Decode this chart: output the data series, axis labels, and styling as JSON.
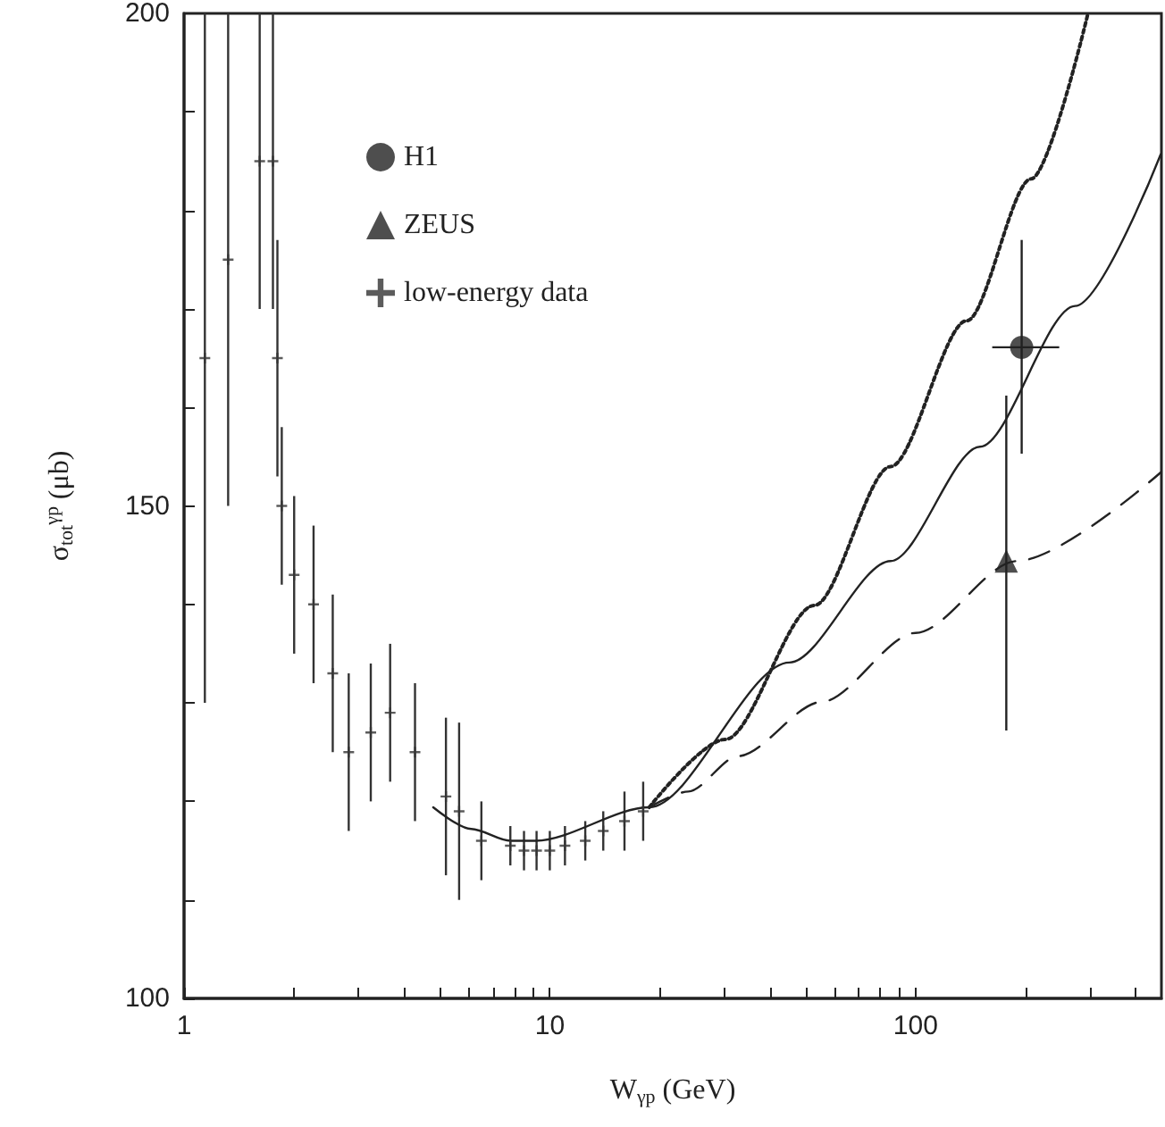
{
  "chart_data": {
    "type": "scatter",
    "xlabel": "W$_{γp}$ (GeV)",
    "ylabel": "σ$_{tot}$$^{γp}$ (μb)",
    "log": "x",
    "xlim": [
      1,
      470
    ],
    "ylim": [
      100,
      200
    ],
    "xticks": [
      1,
      {
        "value": 2,
        "label": null
      },
      {
        "value": 3,
        "label": null
      },
      {
        "value": 4,
        "label": null
      },
      {
        "value": 5,
        "label": null
      },
      {
        "value": 6,
        "label": null
      },
      {
        "value": 7,
        "label": null
      },
      {
        "value": 8,
        "label": null
      },
      {
        "value": 9,
        "label": null
      },
      10,
      {
        "value": 20,
        "label": null
      },
      {
        "value": 30,
        "label": null
      },
      {
        "value": 40,
        "label": null
      },
      {
        "value": 50,
        "label": null
      },
      {
        "value": 60,
        "label": null
      },
      {
        "value": 70,
        "label": null
      },
      {
        "value": 80,
        "label": null
      },
      {
        "value": 90,
        "label": null
      },
      100,
      {
        "value": 200,
        "label": null
      },
      {
        "value": 300,
        "label": null
      },
      {
        "value": 400,
        "label": null
      }
    ],
    "yticks": [
      100,
      {
        "value": 110,
        "label": null
      },
      {
        "value": 120,
        "label": null
      },
      {
        "value": 130,
        "label": null
      },
      {
        "value": 140,
        "label": null
      },
      150,
      {
        "value": 160,
        "label": null
      },
      {
        "value": 170,
        "label": null
      },
      {
        "value": 180,
        "label": null
      },
      {
        "value": 190,
        "label": null
      },
      200
    ],
    "grid": false,
    "legend": "top left",
    "series": [
      {
        "name": "H1",
        "marker": "circle",
        "color": "#222222",
        "x": [
          195
        ],
        "values": [
          166.1
        ],
        "errors": [
          [
            155.3,
            177
          ]
        ],
        "xerrors": [
          [
            162,
            247
          ]
        ]
      },
      {
        "name": "ZEUS",
        "marker": "triangle",
        "color": "#222222",
        "x": [
          177
        ],
        "values": [
          144.4
        ],
        "errors": [
          [
            127.2,
            161.2
          ]
        ]
      },
      {
        "name": "low-energy data",
        "marker": "cross",
        "color": "#333333",
        "x": [
          1.14,
          1.32,
          1.61,
          1.75,
          1.8,
          1.85,
          2.0,
          2.26,
          2.55,
          2.82,
          3.24,
          3.66,
          4.28,
          5.2,
          5.65,
          6.5,
          7.8,
          8.5,
          9.2,
          10,
          11,
          12.5,
          14,
          16,
          18
        ],
        "values": [
          165,
          175,
          185,
          185,
          165,
          150,
          143,
          140,
          133,
          125,
          127,
          129,
          125,
          120.5,
          119,
          116,
          115.5,
          115,
          115,
          115,
          115.5,
          116,
          117,
          118,
          119
        ],
        "errors": [
          35,
          25,
          15,
          15,
          12,
          8,
          8,
          8,
          8,
          8,
          7,
          7,
          7,
          8,
          9,
          4,
          2,
          2,
          2,
          2,
          2,
          2,
          2,
          3,
          3
        ]
      },
      {
        "type": "line",
        "line_style": "solid",
        "color": "#222222",
        "x": [
          4.8,
          6.1,
          7.8,
          9.15,
          18.7,
          45.2,
          85.5,
          150,
          273,
          468
        ],
        "values": [
          119.4,
          117.2,
          116,
          116,
          119.4,
          134.1,
          144.4,
          156,
          170.3,
          185.7
        ]
      },
      {
        "type": "line",
        "line_style": "dotted",
        "color": "#222222",
        "x": [
          18.7,
          30.2,
          52.9,
          85.5,
          138,
          207,
          296
        ],
        "values": [
          119.4,
          126.3,
          139.9,
          154,
          168.8,
          183.2,
          200
        ]
      },
      {
        "type": "line",
        "line_style": "dashed",
        "color": "#222222",
        "x": [
          18.7,
          23.9,
          32.7,
          55.3,
          100,
          189,
          468
        ],
        "values": [
          119.4,
          121,
          124.6,
          130.1,
          137.1,
          144.4,
          153.4
        ]
      }
    ]
  }
}
